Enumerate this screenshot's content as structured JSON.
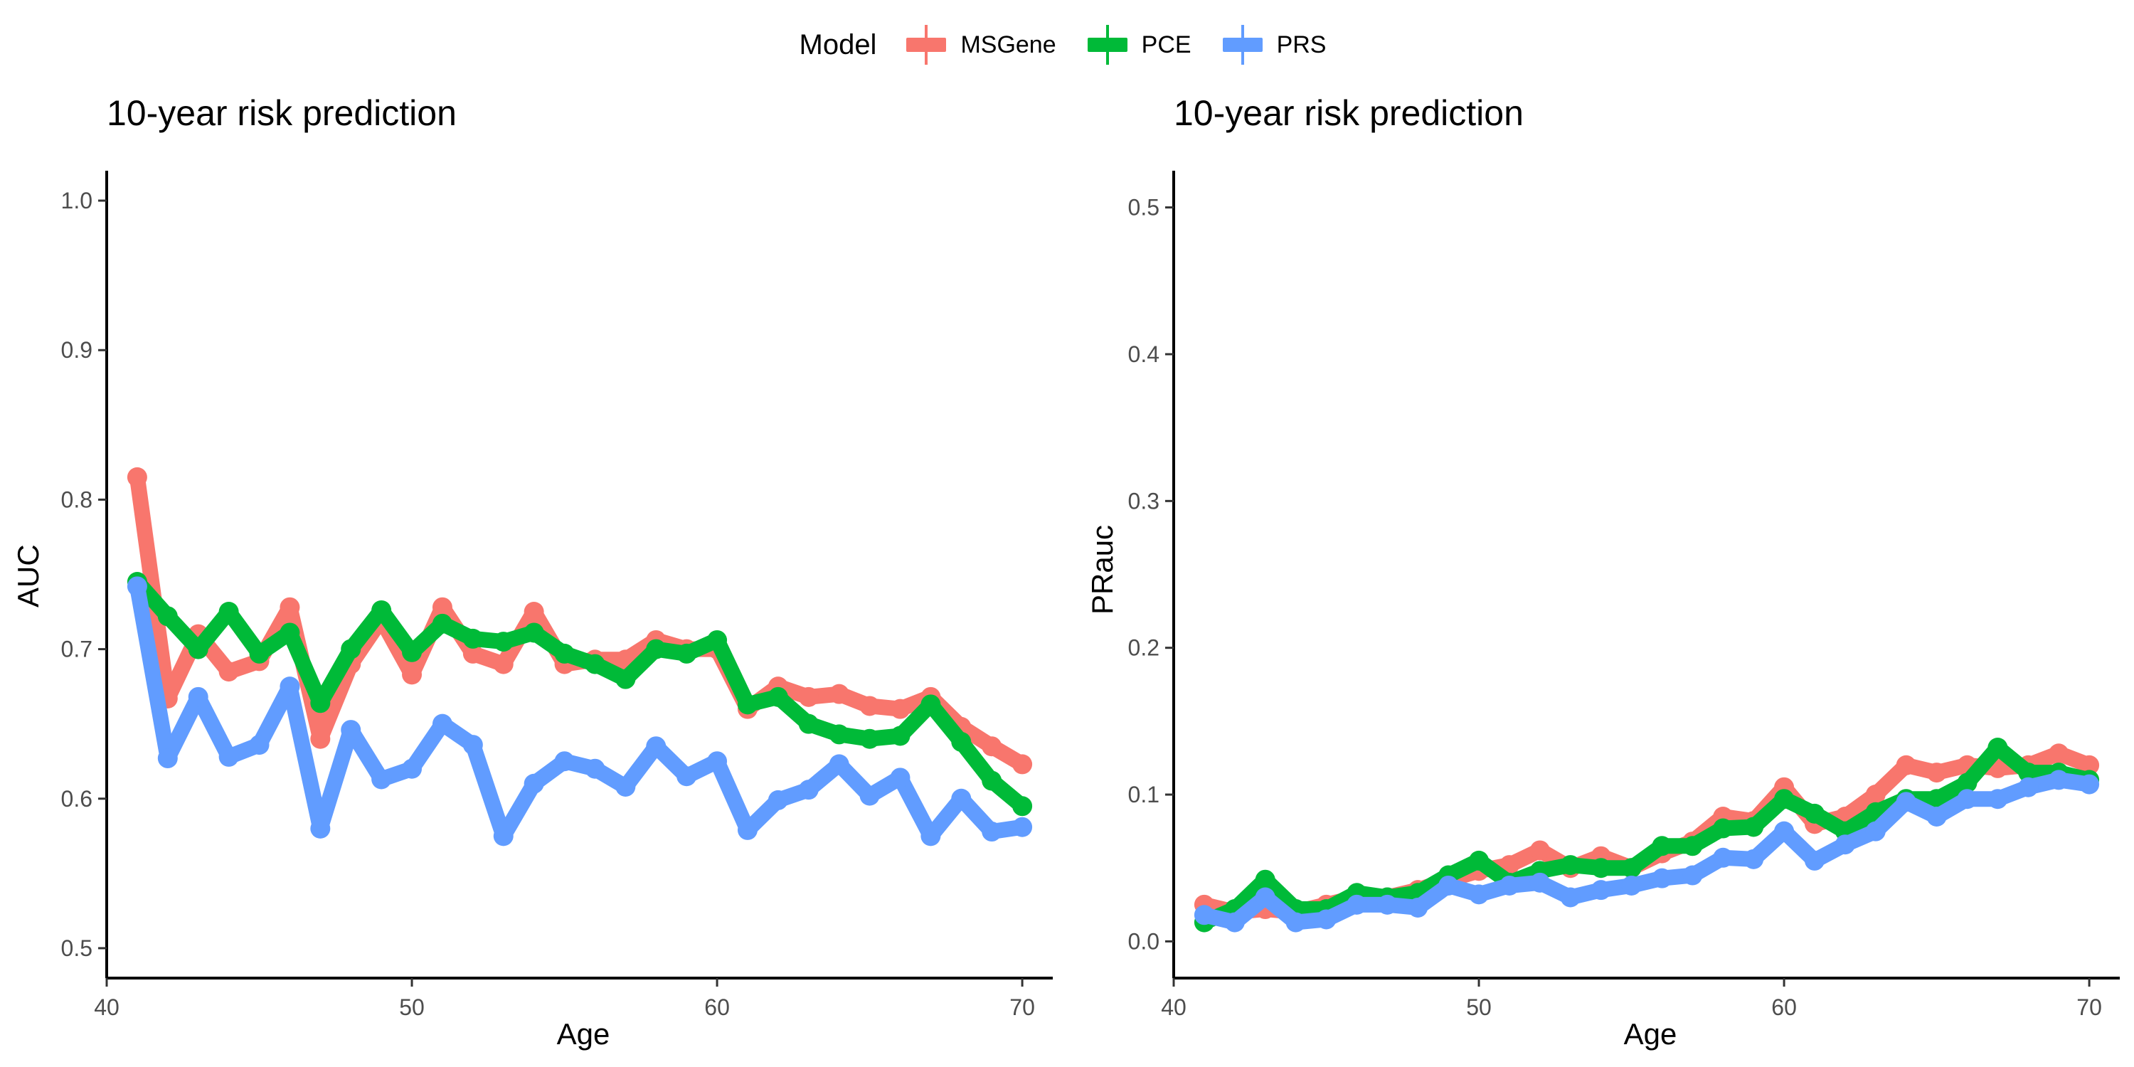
{
  "legend": {
    "title": "Model",
    "items": [
      {
        "label": "MSGene",
        "color": "#F8766D"
      },
      {
        "label": "PCE",
        "color": "#00BA38"
      },
      {
        "label": "PRS",
        "color": "#619CFF"
      }
    ]
  },
  "chart_data": [
    {
      "type": "line",
      "title": "10-year risk prediction",
      "xlabel": "Age",
      "ylabel": "AUC",
      "xlim": [
        40,
        71
      ],
      "ylim": [
        0.48,
        1.02
      ],
      "xticks": [
        40,
        50,
        60,
        70
      ],
      "yticks": [
        0.5,
        0.6,
        0.7,
        0.8,
        0.9,
        1.0
      ],
      "ytick_labels": [
        "0.5",
        "0.6",
        "0.7",
        "0.8",
        "0.9",
        "1.0"
      ],
      "grid": false,
      "legend_position": "top",
      "x": [
        41,
        42,
        43,
        44,
        45,
        46,
        47,
        48,
        49,
        50,
        51,
        52,
        53,
        54,
        55,
        56,
        57,
        58,
        59,
        60,
        61,
        62,
        63,
        64,
        65,
        66,
        67,
        68,
        69,
        70
      ],
      "series": [
        {
          "name": "MSGene",
          "color": "#F8766D",
          "values": [
            0.815,
            0.667,
            0.71,
            0.685,
            0.692,
            0.728,
            0.64,
            0.69,
            0.72,
            0.683,
            0.728,
            0.697,
            0.69,
            0.725,
            0.69,
            0.693,
            0.693,
            0.706,
            0.7,
            0.7,
            0.66,
            0.675,
            0.668,
            0.67,
            0.662,
            0.66,
            0.668,
            0.648,
            0.635,
            0.623
          ]
        },
        {
          "name": "PCE",
          "color": "#00BA38",
          "values": [
            0.745,
            0.722,
            0.7,
            0.725,
            0.697,
            0.711,
            0.664,
            0.7,
            0.726,
            0.698,
            0.717,
            0.707,
            0.705,
            0.711,
            0.697,
            0.69,
            0.68,
            0.7,
            0.697,
            0.706,
            0.663,
            0.668,
            0.65,
            0.643,
            0.64,
            0.642,
            0.663,
            0.638,
            0.612,
            0.595
          ]
        },
        {
          "name": "PRS",
          "color": "#619CFF",
          "values": [
            0.742,
            0.627,
            0.668,
            0.628,
            0.636,
            0.675,
            0.58,
            0.646,
            0.613,
            0.62,
            0.65,
            0.636,
            0.575,
            0.61,
            0.625,
            0.62,
            0.608,
            0.635,
            0.615,
            0.625,
            0.579,
            0.599,
            0.606,
            0.623,
            0.602,
            0.614,
            0.575,
            0.6,
            0.578,
            0.581
          ]
        }
      ]
    },
    {
      "type": "line",
      "title": "10-year risk prediction",
      "xlabel": "Age",
      "ylabel": "PRauc",
      "xlim": [
        40,
        71
      ],
      "ylim": [
        -0.025,
        0.525
      ],
      "xticks": [
        40,
        50,
        60,
        70
      ],
      "yticks": [
        0.0,
        0.1,
        0.2,
        0.3,
        0.4,
        0.5
      ],
      "ytick_labels": [
        "0.0",
        "0.1",
        "0.2",
        "0.3",
        "0.4",
        "0.5"
      ],
      "grid": false,
      "x": [
        41,
        42,
        43,
        44,
        45,
        46,
        47,
        48,
        49,
        50,
        51,
        52,
        53,
        54,
        55,
        56,
        57,
        58,
        59,
        60,
        61,
        62,
        63,
        64,
        65,
        66,
        67,
        68,
        69,
        70
      ],
      "series": [
        {
          "name": "MSGene",
          "color": "#F8766D",
          "values": [
            0.025,
            0.02,
            0.022,
            0.02,
            0.025,
            0.03,
            0.03,
            0.035,
            0.042,
            0.048,
            0.052,
            0.062,
            0.05,
            0.058,
            0.05,
            0.06,
            0.068,
            0.085,
            0.082,
            0.105,
            0.08,
            0.085,
            0.1,
            0.12,
            0.115,
            0.12,
            0.118,
            0.12,
            0.128,
            0.12
          ]
        },
        {
          "name": "PCE",
          "color": "#00BA38",
          "values": [
            0.013,
            0.022,
            0.042,
            0.022,
            0.022,
            0.033,
            0.03,
            0.033,
            0.045,
            0.055,
            0.04,
            0.048,
            0.052,
            0.05,
            0.05,
            0.065,
            0.065,
            0.077,
            0.078,
            0.097,
            0.087,
            0.075,
            0.088,
            0.097,
            0.097,
            0.108,
            0.132,
            0.115,
            0.115,
            0.11
          ]
        },
        {
          "name": "PRS",
          "color": "#619CFF",
          "values": [
            0.018,
            0.013,
            0.03,
            0.013,
            0.015,
            0.025,
            0.025,
            0.023,
            0.038,
            0.032,
            0.038,
            0.04,
            0.03,
            0.035,
            0.038,
            0.043,
            0.045,
            0.057,
            0.056,
            0.075,
            0.055,
            0.066,
            0.075,
            0.095,
            0.085,
            0.097,
            0.097,
            0.105,
            0.11,
            0.107
          ]
        }
      ]
    }
  ]
}
